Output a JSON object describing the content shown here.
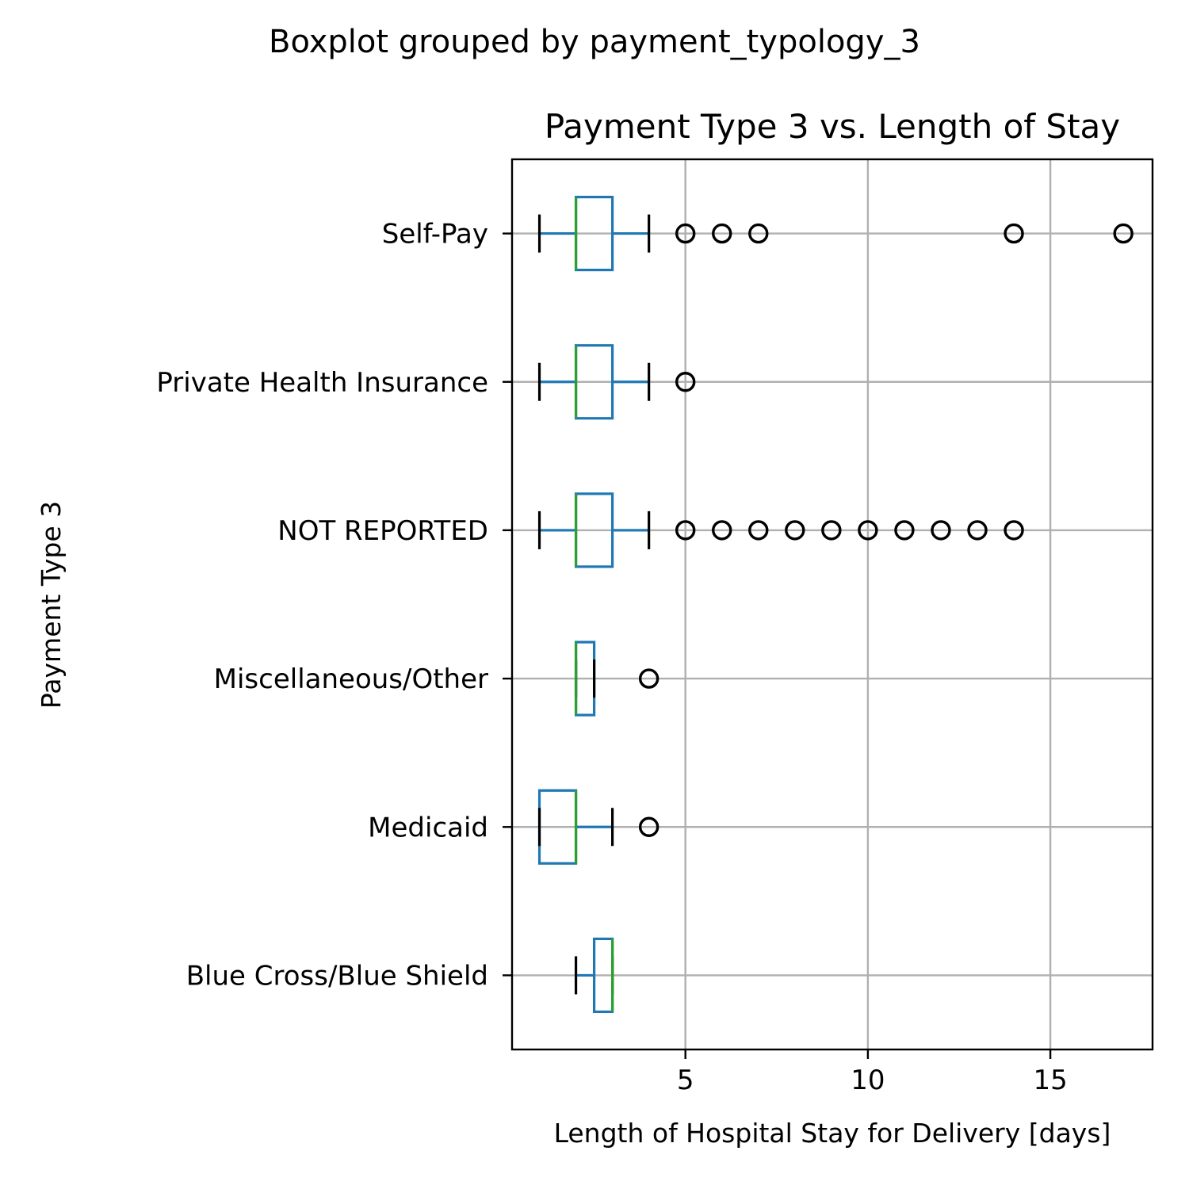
{
  "figure": {
    "suptitle": "Boxplot grouped by payment_typology_3"
  },
  "chart_data": {
    "type": "boxplot",
    "orientation": "horizontal",
    "title": "Payment Type 3 vs. Length of Stay",
    "xlabel": "Length of Hospital Stay for Delivery [days]",
    "ylabel": "Payment Type 3",
    "xlim": [
      0.25,
      17.8
    ],
    "xticks": [
      5,
      10,
      15
    ],
    "xtick_labels": [
      "5",
      "10",
      "15"
    ],
    "grid": true,
    "colors": {
      "box": "#1f77b4",
      "median": "#2ca02c",
      "caps": "#000000",
      "fliers": "#000000",
      "grid": "#b0b0b0"
    },
    "categories": [
      "Blue Cross/Blue Shield",
      "Medicaid",
      "Miscellaneous/Other",
      "NOT REPORTED",
      "Private Health Insurance",
      "Self-Pay"
    ],
    "boxes": [
      {
        "category": "Blue Cross/Blue Shield",
        "whislo": 2,
        "q1": 2.5,
        "median": 3,
        "q3": 3,
        "whishi": 3,
        "fliers": []
      },
      {
        "category": "Medicaid",
        "whislo": 1,
        "q1": 1,
        "median": 2,
        "q3": 2,
        "whishi": 3,
        "fliers": [
          4
        ]
      },
      {
        "category": "Miscellaneous/Other",
        "whislo": 2,
        "q1": 2,
        "median": 2,
        "q3": 2.5,
        "whishi": 2.5,
        "fliers": [
          4
        ]
      },
      {
        "category": "NOT REPORTED",
        "whislo": 1,
        "q1": 2,
        "median": 2,
        "q3": 3,
        "whishi": 4,
        "fliers": [
          5,
          6,
          7,
          8,
          9,
          10,
          11,
          12,
          13,
          14
        ]
      },
      {
        "category": "Private Health Insurance",
        "whislo": 1,
        "q1": 2,
        "median": 2,
        "q3": 3,
        "whishi": 4,
        "fliers": [
          5
        ]
      },
      {
        "category": "Self-Pay",
        "whislo": 1,
        "q1": 2,
        "median": 2,
        "q3": 3,
        "whishi": 4,
        "fliers": [
          5,
          6,
          7,
          14,
          17
        ]
      }
    ]
  }
}
